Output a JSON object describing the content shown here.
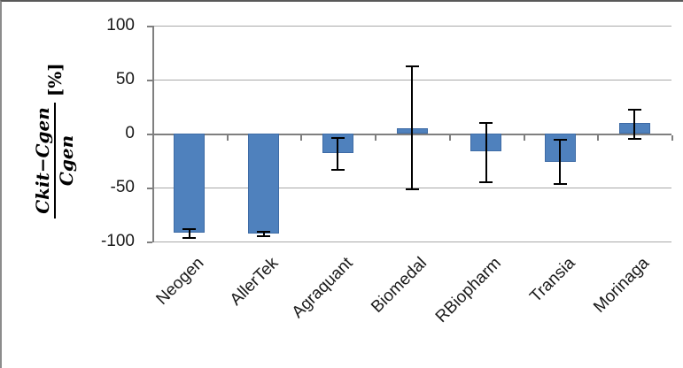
{
  "figure": {
    "background": "#ffffff",
    "frame_top_color": "#595959",
    "frame_left_color": "#8c8c8c"
  },
  "chart_data": {
    "type": "bar",
    "title": "",
    "xlabel": "",
    "ylabel": {
      "numerator": "Ckit−Cgen",
      "denominator": "Cgen",
      "unit": "[%]"
    },
    "categories": [
      "Neogen",
      "AllerTek",
      "Agraquant",
      "Biomedal",
      "RBiopharm",
      "Transia",
      "Morinaga"
    ],
    "values": [
      -92,
      -93,
      -18,
      5,
      -16,
      -26,
      10
    ],
    "error_high": [
      -88,
      -90,
      -3,
      63,
      11,
      -5,
      23
    ],
    "error_low": [
      -97,
      -95,
      -34,
      -52,
      -45,
      -47,
      -5
    ],
    "yticks": [
      100,
      50,
      0,
      -50,
      -100
    ],
    "ylim": [
      -100,
      100
    ],
    "grid": true,
    "legend": false,
    "colors": {
      "bar_fill": "#4f81bd",
      "bar_border": "#3e6ba5",
      "gridline": "#a8a8a8",
      "axis": "#7f7f7f",
      "error_bar": "#000000",
      "tick_text": "#1a1a1a"
    }
  }
}
